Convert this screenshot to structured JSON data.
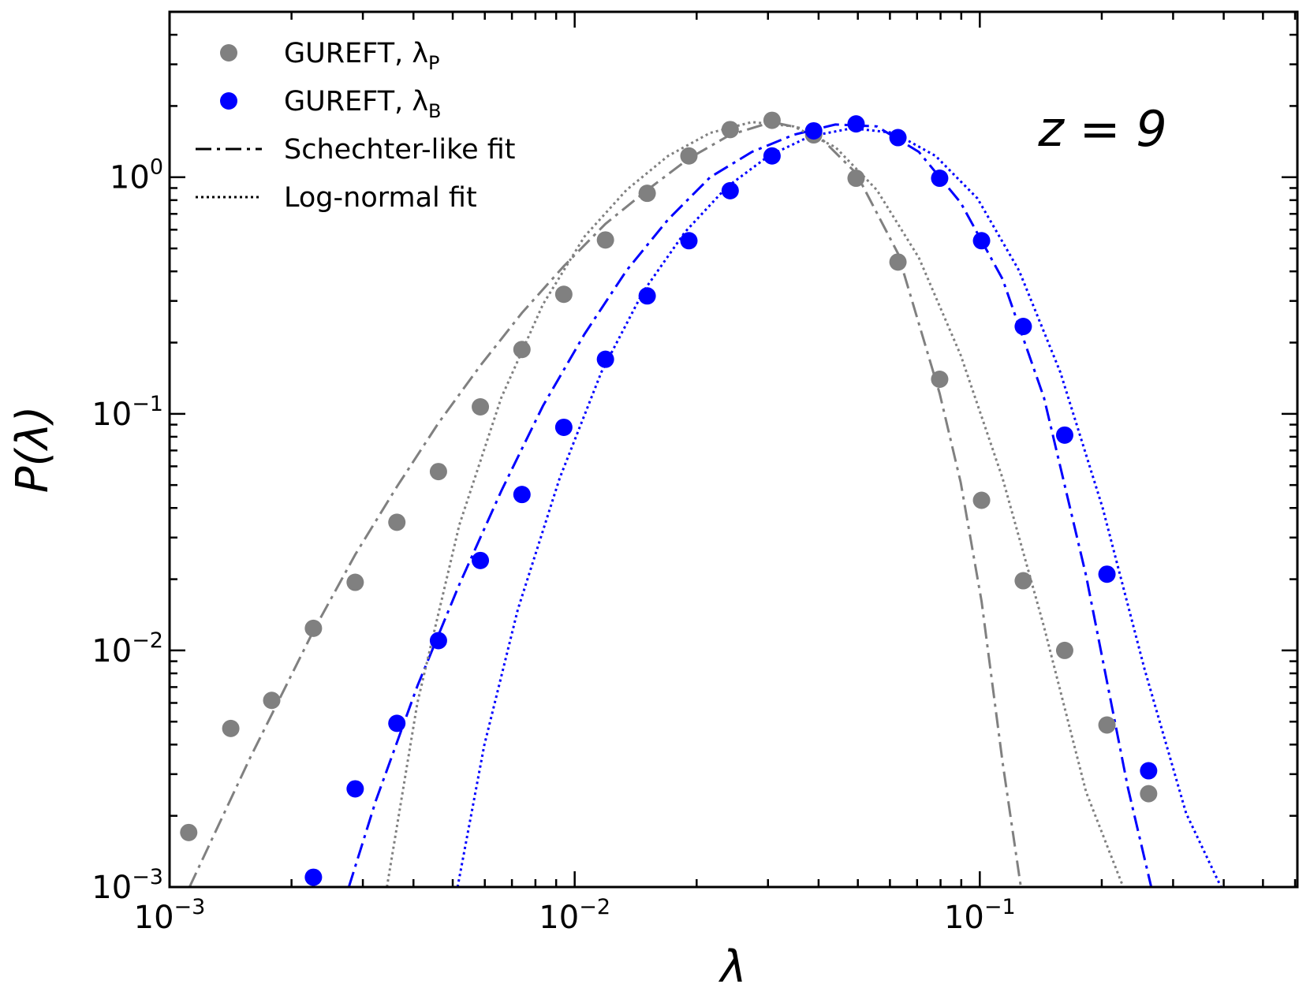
{
  "chart_data": {
    "type": "scatter",
    "xlabel": "λ",
    "ylabel": "P(λ)",
    "annotation": "z = 9",
    "log_x": true,
    "log_y": true,
    "xlim": [
      0.001,
      0.608
    ],
    "ylim": [
      0.001,
      5.0
    ],
    "xticks": [
      {
        "value": 0.001,
        "label": "10",
        "exponent": "−3"
      },
      {
        "value": 0.01,
        "label": "10",
        "exponent": "−2"
      },
      {
        "value": 0.1,
        "label": "10",
        "exponent": "−1"
      }
    ],
    "yticks": [
      {
        "value": 0.001,
        "label": "10",
        "exponent": "−3"
      },
      {
        "value": 0.01,
        "label": "10",
        "exponent": "−2"
      },
      {
        "value": 0.1,
        "label": "10",
        "exponent": "−1"
      },
      {
        "value": 1,
        "label": "10",
        "exponent": "0"
      }
    ],
    "xminorticks": [
      0.002,
      0.003,
      0.004,
      0.005,
      0.006,
      0.007,
      0.008,
      0.009,
      0.02,
      0.03,
      0.04,
      0.05,
      0.06,
      0.07,
      0.08,
      0.09,
      0.2,
      0.3,
      0.4,
      0.5,
      0.6
    ],
    "yminorticks": [
      0.002,
      0.003,
      0.004,
      0.005,
      0.006,
      0.007,
      0.008,
      0.009,
      0.02,
      0.03,
      0.04,
      0.05,
      0.06,
      0.07,
      0.08,
      0.09,
      0.2,
      0.3,
      0.4,
      0.5,
      0.6,
      0.7,
      0.8,
      0.9,
      2,
      3,
      4
    ],
    "legend": "upper left",
    "series": [
      {
        "name": "GUREFT, λ",
        "subscript": "P",
        "color": "#808080",
        "x": [
          0.001115,
          0.001416,
          0.001787,
          0.002265,
          0.002872,
          0.00364,
          0.00461,
          0.00585,
          0.00741,
          0.0094,
          0.01191,
          0.0151,
          0.01914,
          0.0242,
          0.0307,
          0.0389,
          0.0495,
          0.0628,
          0.0796,
          0.101,
          0.128,
          0.162,
          0.206,
          0.261
        ],
        "values": [
          0.0017,
          0.00468,
          0.00615,
          0.0124,
          0.0194,
          0.0348,
          0.057,
          0.107,
          0.187,
          0.32,
          0.543,
          0.855,
          1.23,
          1.59,
          1.74,
          1.51,
          0.99,
          0.438,
          0.14,
          0.0431,
          0.0197,
          0.01,
          0.00484,
          0.00248
        ]
      },
      {
        "name": "GUREFT, λ",
        "subscript": "B",
        "color": "#0000ff",
        "x": [
          0.002265,
          0.002872,
          0.00364,
          0.00461,
          0.00585,
          0.00741,
          0.0094,
          0.01191,
          0.0151,
          0.01914,
          0.0242,
          0.0307,
          0.0389,
          0.0495,
          0.0628,
          0.0796,
          0.101,
          0.128,
          0.162,
          0.206,
          0.261
        ],
        "values": [
          0.0011,
          0.0026,
          0.00492,
          0.011,
          0.024,
          0.0456,
          0.0877,
          0.17,
          0.315,
          0.539,
          0.877,
          1.23,
          1.57,
          1.68,
          1.47,
          0.99,
          0.539,
          0.234,
          0.0813,
          0.021,
          0.0031
        ]
      }
    ],
    "fits": [
      {
        "name": "Schechter-like fit",
        "linestyle": "dashdot",
        "curves": [
          {
            "color": "#808080",
            "x": [
              0.00112,
              0.00158,
              0.002265,
              0.002872,
              0.00364,
              0.00461,
              0.00585,
              0.00741,
              0.0094,
              0.01191,
              0.0151,
              0.01914,
              0.0242,
              0.0307,
              0.0389,
              0.0495,
              0.0628,
              0.0796,
              0.0897,
              0.101,
              0.1138,
              0.1263
            ],
            "values": [
              0.001,
              0.00351,
              0.0121,
              0.0254,
              0.0492,
              0.0914,
              0.16,
              0.267,
              0.421,
              0.635,
              0.883,
              1.2,
              1.51,
              1.71,
              1.57,
              1.04,
              0.476,
              0.122,
              0.0513,
              0.0161,
              0.00337,
              0.001
            ]
          },
          {
            "color": "#0000ff",
            "x": [
              0.00277,
              0.00323,
              0.00409,
              0.00519,
              0.00659,
              0.00835,
              0.01057,
              0.01342,
              0.017,
              0.0216,
              0.0274,
              0.0347,
              0.044,
              0.0557,
              0.0707,
              0.0897,
              0.1138,
              0.144,
              0.183,
              0.232,
              0.265
            ],
            "values": [
              0.001,
              0.00232,
              0.00707,
              0.019,
              0.0472,
              0.108,
              0.217,
              0.403,
              0.662,
              1.0,
              1.28,
              1.51,
              1.67,
              1.64,
              1.28,
              0.78,
              0.371,
              0.117,
              0.0207,
              0.00263,
              0.001
            ]
          }
        ]
      },
      {
        "name": "Log-normal fit",
        "linestyle": "dotted",
        "curves": [
          {
            "color": "#808080",
            "x": [
              0.00344,
              0.00409,
              0.00519,
              0.00659,
              0.00835,
              0.01057,
              0.01342,
              0.017,
              0.0216,
              0.0274,
              0.0347,
              0.044,
              0.0557,
              0.0707,
              0.0897,
              0.1138,
              0.144,
              0.183,
              0.226
            ],
            "values": [
              0.001,
              0.006,
              0.0339,
              0.117,
              0.29,
              0.561,
              0.883,
              1.23,
              1.54,
              1.71,
              1.64,
              1.34,
              0.883,
              0.457,
              0.177,
              0.0534,
              0.0126,
              0.00252,
              0.001
            ]
          },
          {
            "color": "#0000ff",
            "x": [
              0.00514,
              0.00598,
              0.00724,
              0.00918,
              0.01164,
              0.01476,
              0.0187,
              0.0237,
              0.0301,
              0.0381,
              0.0484,
              0.0614,
              0.0778,
              0.0987,
              0.125,
              0.158,
              0.201,
              0.255,
              0.323,
              0.394
            ],
            "values": [
              0.001,
              0.00397,
              0.0149,
              0.0534,
              0.15,
              0.328,
              0.585,
              0.906,
              1.23,
              1.49,
              1.61,
              1.54,
              1.23,
              0.813,
              0.403,
              0.15,
              0.04,
              0.00834,
              0.00205,
              0.001
            ]
          }
        ]
      }
    ]
  }
}
